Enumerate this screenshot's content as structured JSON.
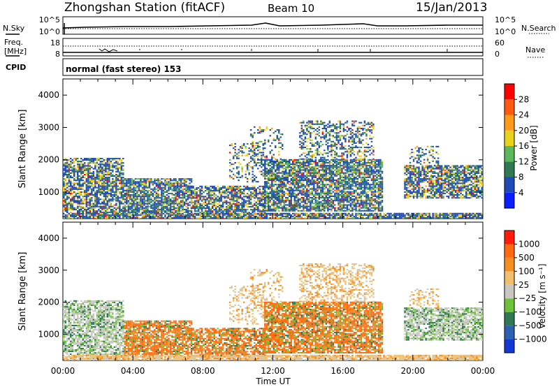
{
  "header": {
    "station_title": "Zhongshan Station (fitACF)",
    "beam_label": "Beam 10",
    "date": "15/Jan/2013"
  },
  "aux_panels": {
    "nsky_label": "N.Sky",
    "nsearch_label": "N.Search",
    "nsky_ticks": [
      "10^5",
      "10^0"
    ],
    "nsearch_ticks": [
      "10^5",
      "10^0"
    ],
    "freq_label_line1": "Freq.",
    "freq_label_line2": "[MHz]",
    "freq_ticks": [
      "18",
      "8"
    ],
    "nave_label": "Nave",
    "nave_ticks": [
      "60",
      "0"
    ],
    "cpid_label": "CPID",
    "cpid_text": "normal (fast stereo) 153"
  },
  "chart_data": [
    {
      "type": "heatmap",
      "name": "power-panel",
      "ylabel": "Slant Range [km]",
      "xlabel": "",
      "ylim": [
        180,
        4500
      ],
      "yticks": [
        "4000",
        "3000",
        "2000",
        "1000"
      ],
      "xlim": [
        0,
        24
      ],
      "xticks": [
        "00:00",
        "04:00",
        "08:00",
        "12:00",
        "16:00",
        "20:00",
        "00:00"
      ],
      "colorbar": {
        "label": "Power [dB]",
        "ticks": [
          "28",
          "24",
          "20",
          "16",
          "12",
          "8",
          "4"
        ],
        "colors": [
          "#0a1fff",
          "#1f4bb8",
          "#2f7a52",
          "#5cb85c",
          "#e8d21c",
          "#ff9a1a",
          "#ff5a10",
          "#ff0000"
        ]
      }
    },
    {
      "type": "heatmap",
      "name": "velocity-panel",
      "ylabel": "Slant Range [km]",
      "xlabel": "Time UT",
      "ylim": [
        180,
        4500
      ],
      "yticks": [
        "4000",
        "3000",
        "2000",
        "1000"
      ],
      "xlim": [
        0,
        24
      ],
      "xticks": [
        "00:00",
        "04:00",
        "08:00",
        "12:00",
        "16:00",
        "20:00",
        "00:00"
      ],
      "colorbar": {
        "label": "Velocity [m s⁻¹]",
        "ticks": [
          "1000",
          "500",
          "100",
          "25",
          "−25",
          "−100",
          "−500",
          "−1000"
        ],
        "colors": [
          "#1238d8",
          "#2e5fb0",
          "#2f7a52",
          "#6ec23a",
          "#c8c8c0",
          "#f0c070",
          "#f59020",
          "#ff6a10",
          "#ff1a0a"
        ]
      }
    }
  ]
}
